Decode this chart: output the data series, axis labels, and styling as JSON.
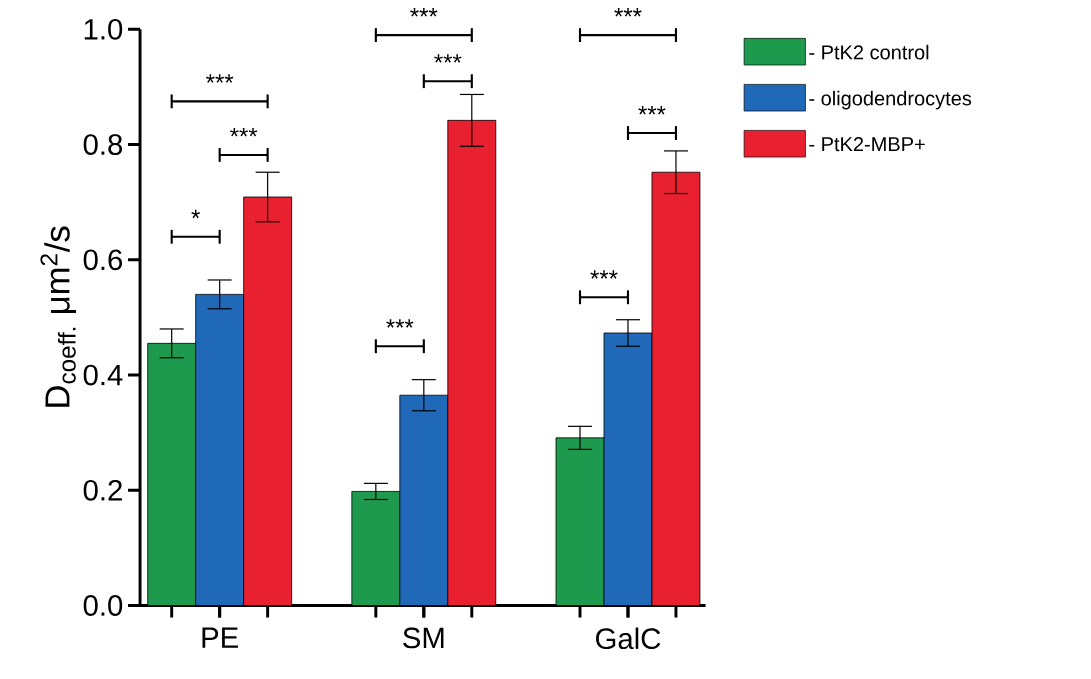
{
  "chart_data": {
    "type": "bar",
    "ylabel": "D$_{coeff.}$ μm$^{2}$/s",
    "categories": [
      "PE",
      "SM",
      "GalC"
    ],
    "series": [
      {
        "name": "- PtK2 control",
        "color": "#1e9a4e",
        "values": [
          0.455,
          0.198,
          0.291
        ],
        "errors": [
          0.025,
          0.014,
          0.02
        ]
      },
      {
        "name": "- oligodendrocytes",
        "color": "#2068b8",
        "values": [
          0.54,
          0.365,
          0.473
        ],
        "errors": [
          0.025,
          0.027,
          0.023
        ]
      },
      {
        "name": "- PtK2-MBP+",
        "color": "#e8202f",
        "values": [
          0.709,
          0.842,
          0.752
        ],
        "errors": [
          0.043,
          0.045,
          0.037
        ]
      }
    ],
    "ylim": [
      0,
      1
    ],
    "yticks": [
      {
        "value": 0,
        "label": "0.0"
      },
      0.2,
      0.4,
      0.6,
      0.8,
      {
        "value": 1,
        "label": "1.0"
      }
    ],
    "annotations": [
      "***",
      "***",
      "*",
      "***",
      "***",
      "***",
      "***",
      "***",
      "***"
    ],
    "grid": false,
    "legend": "right"
  }
}
